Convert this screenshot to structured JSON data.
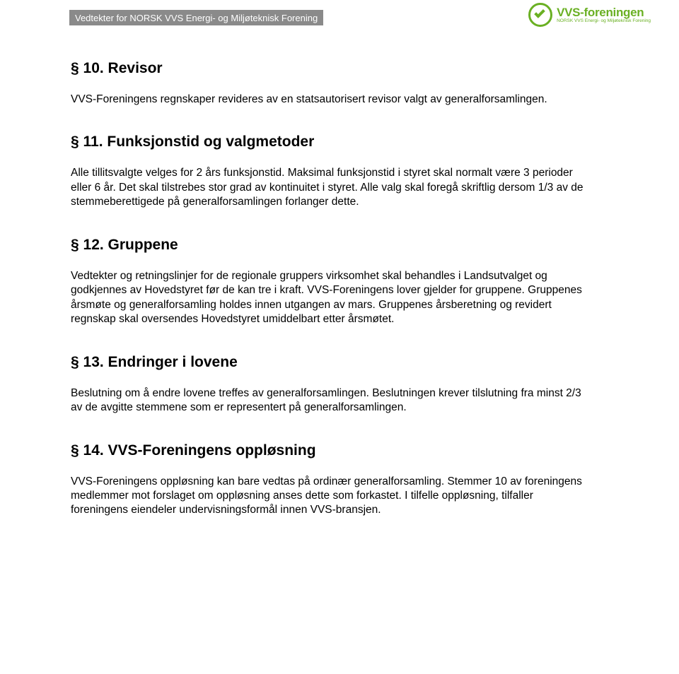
{
  "header": {
    "bar_text": "Vedtekter for NORSK VVS Energi- og Miljøteknisk Forening",
    "bar_bg": "#8a8a8a",
    "bar_text_color": "#ffffff",
    "logo_main": "VVS-foreningen",
    "logo_sub": "NORSK VVS Energi- og Miljøteknisk Forening",
    "logo_color": "#6ab023"
  },
  "sections": {
    "s10": {
      "title": "§ 10. Revisor",
      "body": "VVS-Foreningens regnskaper revideres av en statsautorisert revisor valgt av generalforsamlingen."
    },
    "s11": {
      "title": "§ 11. Funksjonstid og valgmetoder",
      "body": "Alle tillitsvalgte velges for 2 års funksjonstid. Maksimal funksjonstid i styret skal normalt være 3 perioder eller 6 år. Det skal tilstrebes stor grad av kontinuitet i styret. Alle valg skal foregå skriftlig dersom 1/3 av de stemmeberettigede på generalforsamlingen forlanger dette."
    },
    "s12": {
      "title": "§ 12. Gruppene",
      "body": "Vedtekter og retningslinjer for de regionale gruppers virksomhet skal behandles i Landsutvalget og godkjennes av Hovedstyret før de kan tre i kraft. VVS-Foreningens lover gjelder for gruppene. Gruppenes årsmøte og generalforsamling holdes innen utgangen av mars. Gruppenes årsberetning og revidert regnskap skal oversendes Hovedstyret umiddelbart etter årsmøtet."
    },
    "s13": {
      "title": "§ 13. Endringer i lovene",
      "body": "Beslutning om å endre lovene treffes av generalforsamlingen. Beslutningen krever tilslutning fra minst 2/3 av de avgitte stemmene som er representert på generalforsamlingen."
    },
    "s14": {
      "title": "§ 14. VVS-Foreningens oppløsning",
      "body": "VVS-Foreningens oppløsning kan bare vedtas på ordinær generalforsamling. Stemmer 10 av foreningens medlemmer mot forslaget om oppløsning anses dette som forkastet. I tilfelle oppløsning, tilfaller foreningens eiendeler undervisningsformål innen VVS-bransjen."
    }
  },
  "typography": {
    "heading_fontsize": 21,
    "body_fontsize": 15.5,
    "text_color": "#000000",
    "background_color": "#ffffff"
  }
}
